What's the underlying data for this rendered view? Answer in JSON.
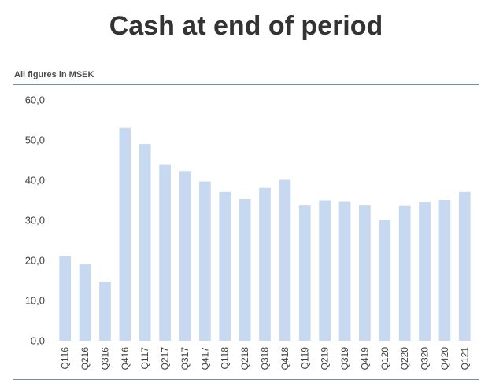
{
  "chart_data": {
    "type": "bar",
    "title": "Cash at end of period",
    "subtitle": "All figures in MSEK",
    "xlabel": "",
    "ylabel": "",
    "ylim": [
      0,
      60
    ],
    "yticks": [
      "0,0",
      "10,0",
      "20,0",
      "30,0",
      "40,0",
      "50,0",
      "60,0"
    ],
    "grid": false,
    "bar_color": "#c6d9f1",
    "categories": [
      "Q116",
      "Q216",
      "Q316",
      "Q416",
      "Q117",
      "Q217",
      "Q317",
      "Q417",
      "Q118",
      "Q218",
      "Q318",
      "Q418",
      "Q119",
      "Q219",
      "Q319",
      "Q419",
      "Q120",
      "Q220",
      "Q320",
      "Q420",
      "Q121"
    ],
    "values": [
      21.0,
      19.0,
      14.7,
      53.0,
      49.0,
      43.8,
      42.3,
      39.7,
      37.1,
      35.3,
      38.1,
      40.1,
      33.7,
      35.0,
      34.6,
      33.7,
      30.0,
      33.6,
      34.5,
      35.1,
      37.1
    ]
  }
}
